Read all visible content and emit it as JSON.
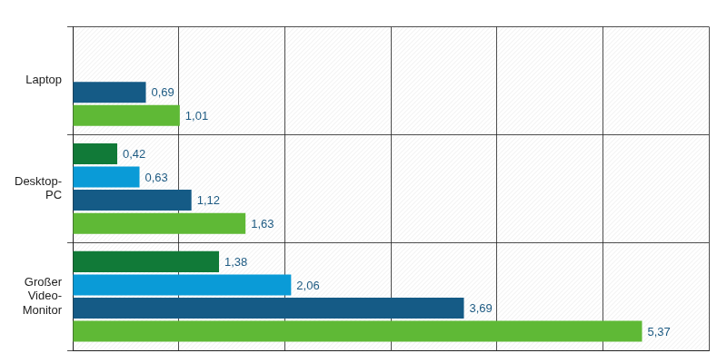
{
  "chart_data": {
    "type": "bar",
    "orientation": "horizontal",
    "categories": [
      "Laptop",
      "Desktop-PC",
      "Großer Video-Monitor"
    ],
    "series": [
      {
        "color": "#117a38",
        "values": [
          null,
          0.42,
          1.38
        ],
        "value_labels": [
          null,
          "0,42",
          "1,38"
        ]
      },
      {
        "color": "#0a9bd7",
        "values": [
          null,
          0.63,
          2.06
        ],
        "value_labels": [
          null,
          "0,63",
          "2,06"
        ]
      },
      {
        "color": "#155b86",
        "values": [
          0.69,
          1.12,
          3.69
        ],
        "value_labels": [
          "0,69",
          "1,12",
          "3,69"
        ]
      },
      {
        "color": "#5fb936",
        "values": [
          1.01,
          1.63,
          5.37
        ],
        "value_labels": [
          "1,01",
          "1,63",
          "5,37"
        ]
      }
    ],
    "xlim": [
      0,
      6
    ],
    "xticks": [
      0,
      1,
      2,
      3,
      4,
      5,
      6
    ],
    "grid": true,
    "data_labels": true,
    "tick_labels": "y"
  }
}
